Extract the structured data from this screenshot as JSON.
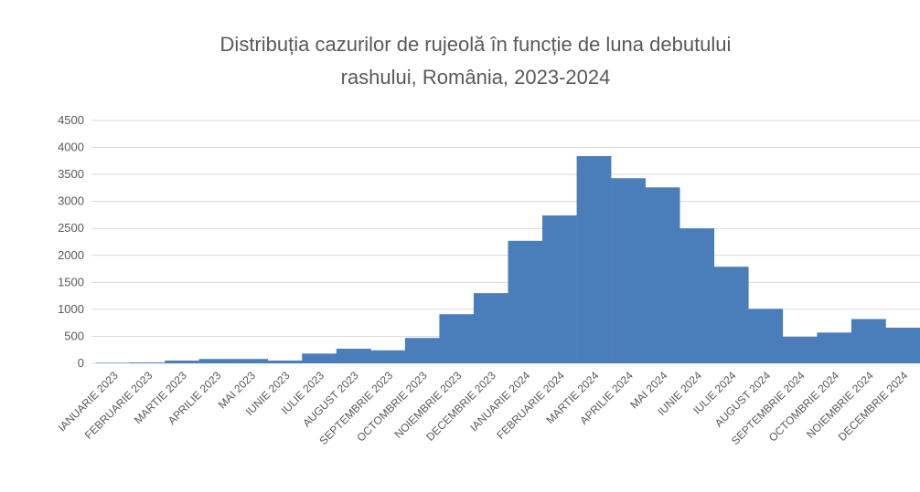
{
  "chart_data": {
    "type": "bar",
    "title": [
      "Distribuția cazurilor de rujeolă în funcție de luna debutului",
      "rashului, România, 2023-2024"
    ],
    "categories": [
      "IANUARIE 2023",
      "FEBRUARIE 2023",
      "MARTIE 2023",
      "APRILIE 2023",
      "MAI 2023",
      "IUNIE 2023",
      "IULIE 2023",
      "AUGUST 2023",
      "SEPTEMBRIE 2023",
      "OCTOMBRIE 2023",
      "NOIEMBRIE 2023",
      "DECEMBRIE 2023",
      "IANUARIE 2024",
      "FEBRUARIE 2024",
      "MARTIE 2024",
      "APRILIE 2024",
      "MAI 2024",
      "IUNIE 2024",
      "IULIE 2024",
      "AUGUST 2024",
      "SEPTEMBRIE 2024",
      "OCTOMBRIE 2024",
      "NOIEMBRIE 2024",
      "DECEMBRIE 2024"
    ],
    "values": [
      10,
      15,
      50,
      80,
      80,
      50,
      180,
      270,
      240,
      470,
      910,
      1300,
      2270,
      2740,
      3840,
      3430,
      3260,
      2500,
      1790,
      1010,
      490,
      570,
      820,
      660
    ],
    "color": "#4a7ebb",
    "ylim": [
      0,
      4500
    ],
    "yticks": [
      0,
      500,
      1000,
      1500,
      2000,
      2500,
      3000,
      3500,
      4000,
      4500
    ],
    "grid": true
  }
}
